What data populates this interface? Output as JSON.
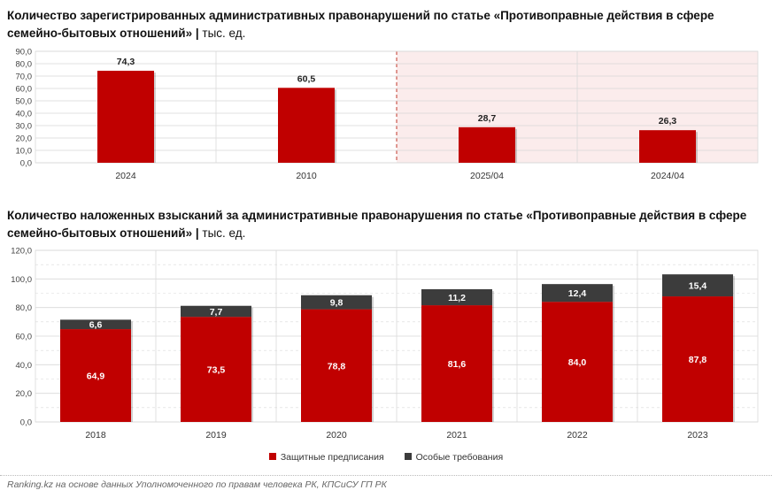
{
  "chart_data": [
    {
      "type": "bar",
      "title": "Количество зарегистрированных административных правонарушений по статье «Противоправные действия в сфере семейно-бытовых отношений»",
      "unit": "тыс. ед.",
      "categories": [
        "2024",
        "2010",
        "2025/04",
        "2024/04"
      ],
      "values": [
        74.3,
        60.5,
        28.7,
        26.3
      ],
      "value_labels": [
        "74,3",
        "60,5",
        "28,7",
        "26,3"
      ],
      "y_ticks": [
        "0,0",
        "10,0",
        "20,0",
        "30,0",
        "40,0",
        "50,0",
        "60,0",
        "70,0",
        "80,0",
        "90,0"
      ],
      "ylim": [
        0,
        90
      ],
      "highlight_categories": [
        "2025/04",
        "2024/04"
      ],
      "grid": true,
      "xlabel": "",
      "ylabel": ""
    },
    {
      "type": "bar",
      "stacked": true,
      "title": "Количество наложенных взысканий за административные правонарушения по статье «Противоправные действия в сфере семейно-бытовых отношений»",
      "unit": "тыс. ед.",
      "categories": [
        "2018",
        "2019",
        "2020",
        "2021",
        "2022",
        "2023"
      ],
      "series": [
        {
          "name": "Защитные предписания",
          "values": [
            64.9,
            73.5,
            78.8,
            81.6,
            84.0,
            87.8
          ],
          "labels": [
            "64,9",
            "73,5",
            "78,8",
            "81,6",
            "84,0",
            "87,8"
          ]
        },
        {
          "name": "Особые требования",
          "values": [
            6.6,
            7.7,
            9.8,
            11.2,
            12.4,
            15.4
          ],
          "labels": [
            "6,6",
            "7,7",
            "9,8",
            "11,2",
            "12,4",
            "15,4"
          ]
        }
      ],
      "y_ticks": [
        "0,0",
        "20,0",
        "40,0",
        "60,0",
        "80,0",
        "100,0",
        "120,0"
      ],
      "ylim": [
        0,
        120
      ],
      "legend_position": "bottom",
      "grid": true,
      "xlabel": "",
      "ylabel": ""
    }
  ],
  "colors": {
    "bar_red": "#c00000",
    "bar_dark": "#3c3c3c",
    "highlight_fill": "#fbecec",
    "highlight_border": "#c0392b",
    "grid": "#d9d9d9"
  },
  "footer": "Ranking.kz на основе данных Уполномоченного по правам человека РК, КПСиСУ ГП РК"
}
